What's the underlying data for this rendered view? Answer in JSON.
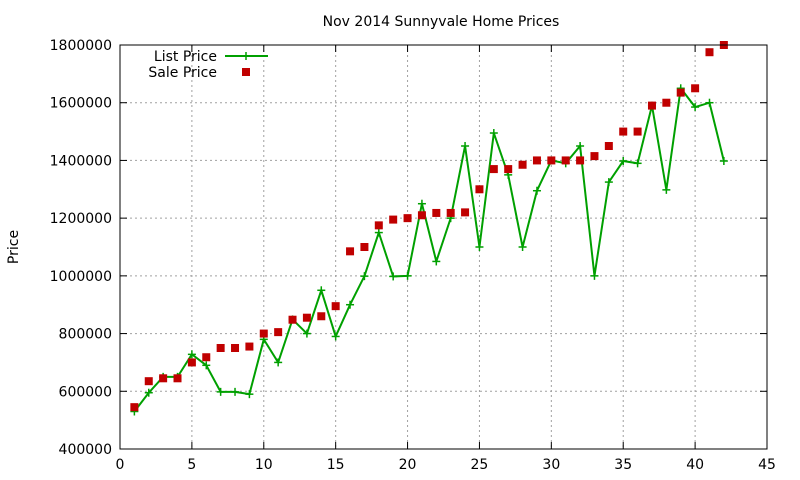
{
  "chart_data": {
    "type": "line",
    "title": "Nov 2014 Sunnyvale Home Prices",
    "xlabel": "",
    "ylabel": "Price",
    "xlim": [
      0,
      45
    ],
    "ylim": [
      400000,
      1800000
    ],
    "xticks": [
      0,
      5,
      10,
      15,
      20,
      25,
      30,
      35,
      40,
      45
    ],
    "yticks": [
      400000,
      600000,
      800000,
      1000000,
      1200000,
      1400000,
      1600000,
      1800000
    ],
    "grid": true,
    "legend_position": "top-left",
    "series": [
      {
        "name": "List Price",
        "style": "line+cross",
        "color": "#00a000",
        "x": [
          1,
          2,
          3,
          4,
          5,
          6,
          7,
          8,
          9,
          10,
          11,
          12,
          13,
          14,
          15,
          16,
          17,
          18,
          19,
          20,
          21,
          22,
          23,
          24,
          25,
          26,
          27,
          28,
          29,
          30,
          31,
          32,
          33,
          34,
          35,
          36,
          37,
          38,
          39,
          40,
          41,
          42
        ],
        "values": [
          530000,
          595000,
          650000,
          650000,
          728000,
          690000,
          598000,
          598000,
          590000,
          780000,
          700000,
          849000,
          800000,
          950000,
          790000,
          900000,
          999000,
          1150000,
          998000,
          1000000,
          1250000,
          1050000,
          1200000,
          1450000,
          1100000,
          1495000,
          1350000,
          1100000,
          1295000,
          1400000,
          1390000,
          1450000,
          1000000,
          1325000,
          1398000,
          1390000,
          1590000,
          1298000,
          1650000,
          1585000,
          1600000,
          1398000
        ]
      },
      {
        "name": "Sale Price",
        "style": "square-marker",
        "color": "#c00000",
        "x": [
          1,
          2,
          3,
          4,
          5,
          6,
          7,
          8,
          9,
          10,
          11,
          12,
          13,
          14,
          15,
          16,
          17,
          18,
          19,
          20,
          21,
          22,
          23,
          24,
          25,
          26,
          27,
          28,
          29,
          30,
          31,
          32,
          33,
          34,
          35,
          36,
          37,
          38,
          39,
          40,
          41,
          42
        ],
        "values": [
          545000,
          635000,
          645000,
          645000,
          700000,
          718000,
          750000,
          750000,
          755000,
          800000,
          805000,
          848000,
          855000,
          860000,
          895000,
          1085000,
          1100000,
          1175000,
          1195000,
          1200000,
          1210000,
          1218000,
          1218000,
          1220000,
          1300000,
          1370000,
          1370000,
          1385000,
          1400000,
          1400000,
          1400000,
          1400000,
          1415000,
          1450000,
          1500000,
          1500000,
          1590000,
          1600000,
          1635000,
          1650000,
          1775000,
          1800000
        ]
      }
    ]
  }
}
